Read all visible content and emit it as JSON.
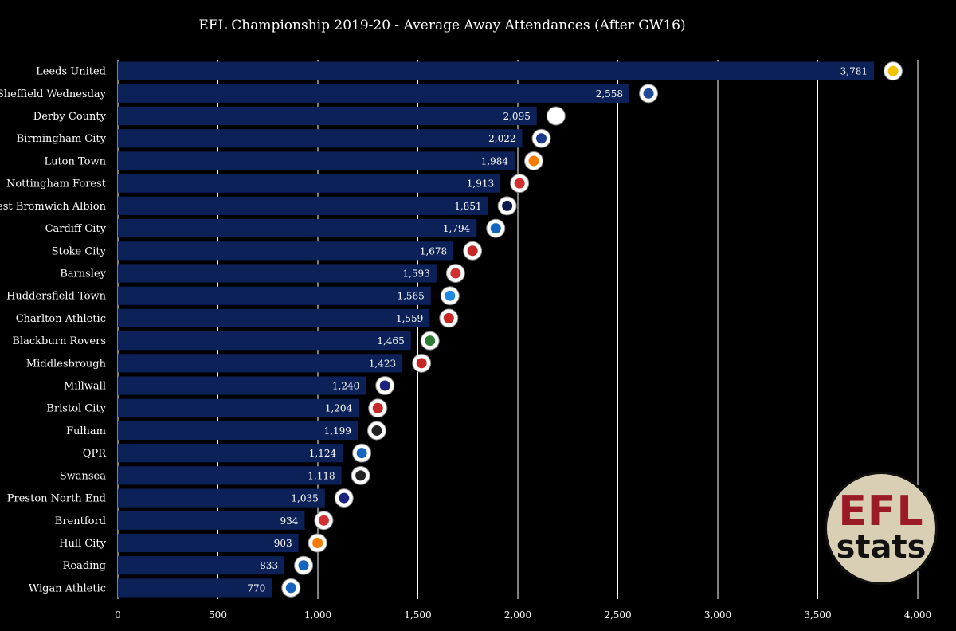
{
  "chart_data": {
    "type": "bar",
    "orientation": "horizontal",
    "title": "EFL Championship 2019-20 - Average Away Attendances (After GW16)",
    "xlabel": "",
    "ylabel": "",
    "xlim": [
      0,
      4000
    ],
    "xticks": [
      0,
      500,
      1000,
      1500,
      2000,
      2500,
      3000,
      3500,
      4000
    ],
    "xtick_labels": [
      "0",
      "500",
      "1,000",
      "1,500",
      "2,000",
      "2,500",
      "3,000",
      "3,500",
      "4,000"
    ],
    "grid": true,
    "categories": [
      "Leeds United",
      "Sheffield Wednesday",
      "Derby County",
      "Birmingham City",
      "Luton Town",
      "Nottingham Forest",
      "West Bromwich Albion",
      "Cardiff City",
      "Stoke City",
      "Barnsley",
      "Huddersfield Town",
      "Charlton Athletic",
      "Blackburn Rovers",
      "Middlesbrough",
      "Millwall",
      "Bristol City",
      "Fulham",
      "QPR",
      "Swansea",
      "Preston North End",
      "Brentford",
      "Hull City",
      "Reading",
      "Wigan Athletic"
    ],
    "values": [
      3781,
      2558,
      2095,
      2022,
      1984,
      1913,
      1851,
      1794,
      1678,
      1593,
      1565,
      1559,
      1465,
      1423,
      1240,
      1204,
      1199,
      1124,
      1118,
      1035,
      934,
      903,
      833,
      770
    ],
    "value_labels": [
      "3,781",
      "2,558",
      "2,095",
      "2,022",
      "1,984",
      "1,913",
      "1,851",
      "1,794",
      "1,678",
      "1,593",
      "1,565",
      "1,559",
      "1,465",
      "1,423",
      "1,240",
      "1,204",
      "1,199",
      "1,124",
      "1,118",
      "1,035",
      "934",
      "903",
      "833",
      "770"
    ],
    "crest_colors": [
      "#f2c200",
      "#1f4a9c",
      "#ffffff",
      "#1c3a8a",
      "#f57c00",
      "#d32f2f",
      "#0d1b4a",
      "#1565c0",
      "#c62828",
      "#d32f2f",
      "#1e88e5",
      "#c62828",
      "#2e7d32",
      "#c62828",
      "#1a237e",
      "#c62828",
      "#222222",
      "#1565c0",
      "#222222",
      "#1a237e",
      "#d32f2f",
      "#f57c00",
      "#1565c0",
      "#1565c0"
    ],
    "bar_color": "#0c2158",
    "grid_color": "#ffffff"
  },
  "brand": {
    "top": "EFL",
    "bottom": "stats"
  }
}
